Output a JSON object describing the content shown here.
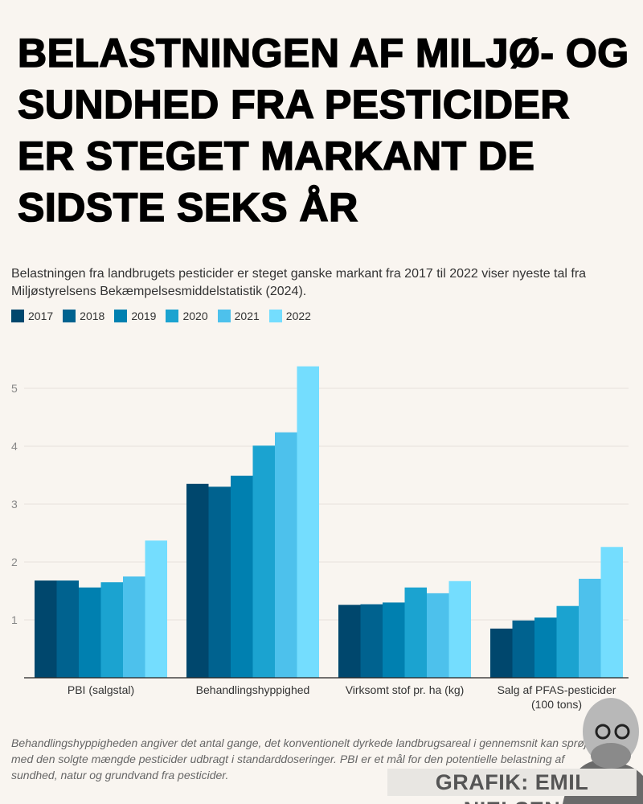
{
  "title": "BELASTNINGEN AF MILJØ- OG SUNDHED FRA PESTICIDER ER STEGET MARKANT DE SIDSTE SEKS ÅR",
  "subtitle": "Belastningen fra landbrugets pesticider er steget ganske markant fra 2017 til 2022 viser nyeste tal fra Miljøstyrelsens Bekæmpelsesmiddelstatistik (2024).",
  "note": "Behandlingshyppigheden angiver det antal gange, det konventionelt dyrkede landbrugsareal i gennemsnit kan sprøjtes med den solgte mængde pesticider udbragt i standarddoseringer. PBI er et mål for den potentielle belastning af sundhed, natur og grundvand fra pesticider.",
  "credit": "GRAFIK: EMIL NIELSEN",
  "chart_data": {
    "type": "bar",
    "categories": [
      "PBI (salgstal)",
      "Behandlingshyppighed",
      "Virksomt stof pr. ha (kg)",
      "Salg af PFAS-pesticider (100 tons)"
    ],
    "series": [
      {
        "name": "2017",
        "color": "#00476d",
        "values": [
          1.68,
          3.35,
          1.26,
          0.85
        ]
      },
      {
        "name": "2018",
        "color": "#00628f",
        "values": [
          1.68,
          3.3,
          1.27,
          0.99
        ]
      },
      {
        "name": "2019",
        "color": "#0080b0",
        "values": [
          1.56,
          3.49,
          1.3,
          1.04
        ]
      },
      {
        "name": "2020",
        "color": "#1ba3d0",
        "values": [
          1.65,
          4.01,
          1.56,
          1.24
        ]
      },
      {
        "name": "2021",
        "color": "#4dc1ec",
        "values": [
          1.75,
          4.24,
          1.46,
          1.71
        ]
      },
      {
        "name": "2022",
        "color": "#74ddfe",
        "values": [
          2.37,
          5.38,
          1.67,
          2.26
        ]
      }
    ],
    "yticks": [
      1,
      2,
      3,
      4,
      5
    ],
    "ylim": [
      0,
      5.4
    ],
    "grid": true,
    "legend": "top-left"
  }
}
